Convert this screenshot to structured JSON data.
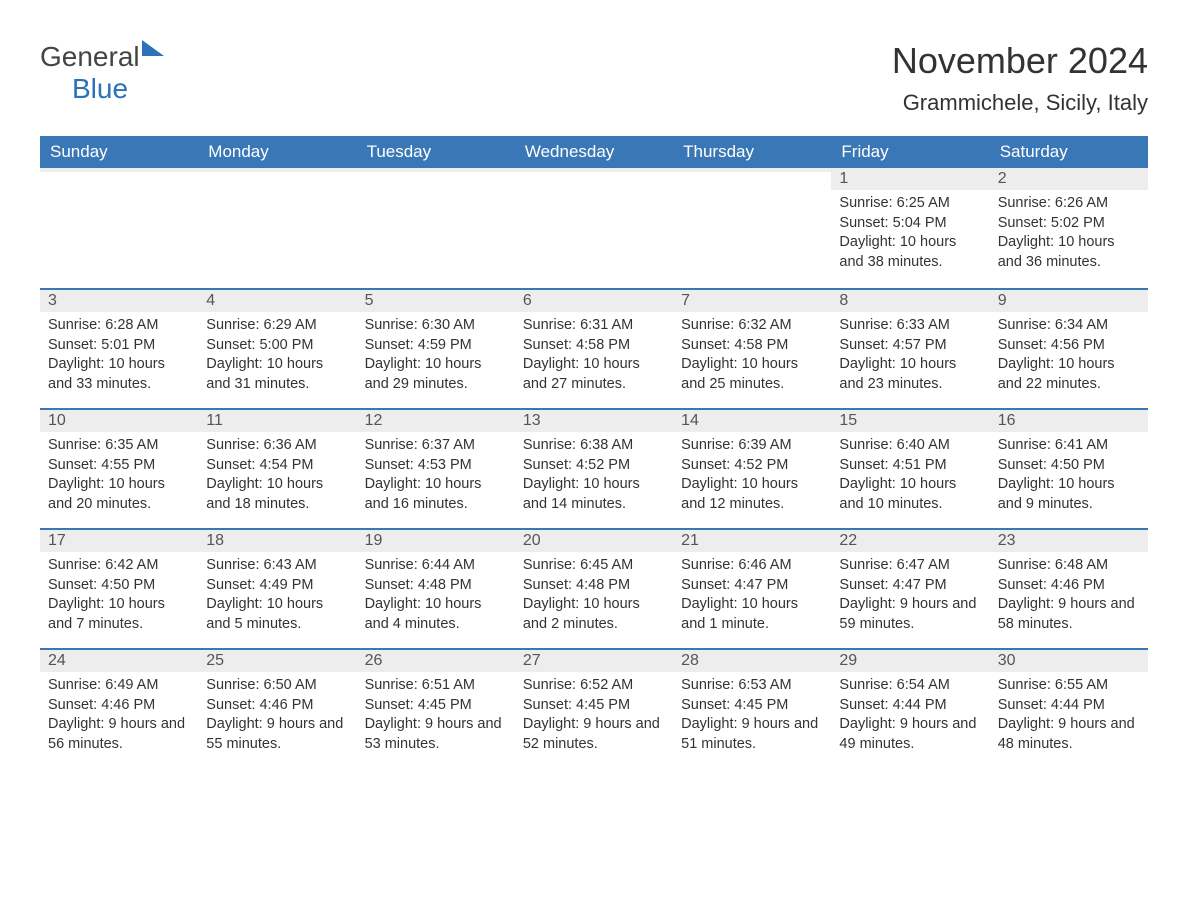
{
  "brand": {
    "word1": "General",
    "word2": "Blue",
    "accent_color": "#2c72b8"
  },
  "title": "November 2024",
  "location": "Grammichele, Sicily, Italy",
  "colors": {
    "header_bg": "#3a77b7",
    "header_text": "#ffffff",
    "row_stripe": "#ededed",
    "row_border": "#3a77b7",
    "text": "#333333"
  },
  "day_headers": [
    "Sunday",
    "Monday",
    "Tuesday",
    "Wednesday",
    "Thursday",
    "Friday",
    "Saturday"
  ],
  "weeks": [
    [
      {
        "day": "",
        "sunrise": "",
        "sunset": "",
        "daylight": ""
      },
      {
        "day": "",
        "sunrise": "",
        "sunset": "",
        "daylight": ""
      },
      {
        "day": "",
        "sunrise": "",
        "sunset": "",
        "daylight": ""
      },
      {
        "day": "",
        "sunrise": "",
        "sunset": "",
        "daylight": ""
      },
      {
        "day": "",
        "sunrise": "",
        "sunset": "",
        "daylight": ""
      },
      {
        "day": "1",
        "sunrise": "Sunrise: 6:25 AM",
        "sunset": "Sunset: 5:04 PM",
        "daylight": "Daylight: 10 hours and 38 minutes."
      },
      {
        "day": "2",
        "sunrise": "Sunrise: 6:26 AM",
        "sunset": "Sunset: 5:02 PM",
        "daylight": "Daylight: 10 hours and 36 minutes."
      }
    ],
    [
      {
        "day": "3",
        "sunrise": "Sunrise: 6:28 AM",
        "sunset": "Sunset: 5:01 PM",
        "daylight": "Daylight: 10 hours and 33 minutes."
      },
      {
        "day": "4",
        "sunrise": "Sunrise: 6:29 AM",
        "sunset": "Sunset: 5:00 PM",
        "daylight": "Daylight: 10 hours and 31 minutes."
      },
      {
        "day": "5",
        "sunrise": "Sunrise: 6:30 AM",
        "sunset": "Sunset: 4:59 PM",
        "daylight": "Daylight: 10 hours and 29 minutes."
      },
      {
        "day": "6",
        "sunrise": "Sunrise: 6:31 AM",
        "sunset": "Sunset: 4:58 PM",
        "daylight": "Daylight: 10 hours and 27 minutes."
      },
      {
        "day": "7",
        "sunrise": "Sunrise: 6:32 AM",
        "sunset": "Sunset: 4:58 PM",
        "daylight": "Daylight: 10 hours and 25 minutes."
      },
      {
        "day": "8",
        "sunrise": "Sunrise: 6:33 AM",
        "sunset": "Sunset: 4:57 PM",
        "daylight": "Daylight: 10 hours and 23 minutes."
      },
      {
        "day": "9",
        "sunrise": "Sunrise: 6:34 AM",
        "sunset": "Sunset: 4:56 PM",
        "daylight": "Daylight: 10 hours and 22 minutes."
      }
    ],
    [
      {
        "day": "10",
        "sunrise": "Sunrise: 6:35 AM",
        "sunset": "Sunset: 4:55 PM",
        "daylight": "Daylight: 10 hours and 20 minutes."
      },
      {
        "day": "11",
        "sunrise": "Sunrise: 6:36 AM",
        "sunset": "Sunset: 4:54 PM",
        "daylight": "Daylight: 10 hours and 18 minutes."
      },
      {
        "day": "12",
        "sunrise": "Sunrise: 6:37 AM",
        "sunset": "Sunset: 4:53 PM",
        "daylight": "Daylight: 10 hours and 16 minutes."
      },
      {
        "day": "13",
        "sunrise": "Sunrise: 6:38 AM",
        "sunset": "Sunset: 4:52 PM",
        "daylight": "Daylight: 10 hours and 14 minutes."
      },
      {
        "day": "14",
        "sunrise": "Sunrise: 6:39 AM",
        "sunset": "Sunset: 4:52 PM",
        "daylight": "Daylight: 10 hours and 12 minutes."
      },
      {
        "day": "15",
        "sunrise": "Sunrise: 6:40 AM",
        "sunset": "Sunset: 4:51 PM",
        "daylight": "Daylight: 10 hours and 10 minutes."
      },
      {
        "day": "16",
        "sunrise": "Sunrise: 6:41 AM",
        "sunset": "Sunset: 4:50 PM",
        "daylight": "Daylight: 10 hours and 9 minutes."
      }
    ],
    [
      {
        "day": "17",
        "sunrise": "Sunrise: 6:42 AM",
        "sunset": "Sunset: 4:50 PM",
        "daylight": "Daylight: 10 hours and 7 minutes."
      },
      {
        "day": "18",
        "sunrise": "Sunrise: 6:43 AM",
        "sunset": "Sunset: 4:49 PM",
        "daylight": "Daylight: 10 hours and 5 minutes."
      },
      {
        "day": "19",
        "sunrise": "Sunrise: 6:44 AM",
        "sunset": "Sunset: 4:48 PM",
        "daylight": "Daylight: 10 hours and 4 minutes."
      },
      {
        "day": "20",
        "sunrise": "Sunrise: 6:45 AM",
        "sunset": "Sunset: 4:48 PM",
        "daylight": "Daylight: 10 hours and 2 minutes."
      },
      {
        "day": "21",
        "sunrise": "Sunrise: 6:46 AM",
        "sunset": "Sunset: 4:47 PM",
        "daylight": "Daylight: 10 hours and 1 minute."
      },
      {
        "day": "22",
        "sunrise": "Sunrise: 6:47 AM",
        "sunset": "Sunset: 4:47 PM",
        "daylight": "Daylight: 9 hours and 59 minutes."
      },
      {
        "day": "23",
        "sunrise": "Sunrise: 6:48 AM",
        "sunset": "Sunset: 4:46 PM",
        "daylight": "Daylight: 9 hours and 58 minutes."
      }
    ],
    [
      {
        "day": "24",
        "sunrise": "Sunrise: 6:49 AM",
        "sunset": "Sunset: 4:46 PM",
        "daylight": "Daylight: 9 hours and 56 minutes."
      },
      {
        "day": "25",
        "sunrise": "Sunrise: 6:50 AM",
        "sunset": "Sunset: 4:46 PM",
        "daylight": "Daylight: 9 hours and 55 minutes."
      },
      {
        "day": "26",
        "sunrise": "Sunrise: 6:51 AM",
        "sunset": "Sunset: 4:45 PM",
        "daylight": "Daylight: 9 hours and 53 minutes."
      },
      {
        "day": "27",
        "sunrise": "Sunrise: 6:52 AM",
        "sunset": "Sunset: 4:45 PM",
        "daylight": "Daylight: 9 hours and 52 minutes."
      },
      {
        "day": "28",
        "sunrise": "Sunrise: 6:53 AM",
        "sunset": "Sunset: 4:45 PM",
        "daylight": "Daylight: 9 hours and 51 minutes."
      },
      {
        "day": "29",
        "sunrise": "Sunrise: 6:54 AM",
        "sunset": "Sunset: 4:44 PM",
        "daylight": "Daylight: 9 hours and 49 minutes."
      },
      {
        "day": "30",
        "sunrise": "Sunrise: 6:55 AM",
        "sunset": "Sunset: 4:44 PM",
        "daylight": "Daylight: 9 hours and 48 minutes."
      }
    ]
  ]
}
